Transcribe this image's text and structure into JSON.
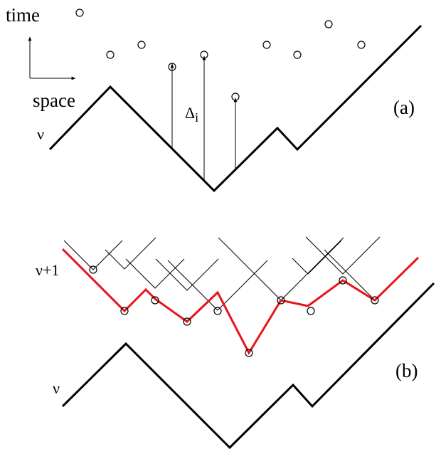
{
  "axes": {
    "time_label": "time",
    "space_label": "space"
  },
  "panel_a": {
    "label": "(a)",
    "surface_label": "ν",
    "delta_label": "Δ",
    "delta_subscript": "i"
  },
  "panel_b": {
    "label": "(b)",
    "lower_surface_label": "ν",
    "upper_surface_label": "ν+1",
    "upper_surface_color": "#e8141b"
  }
}
